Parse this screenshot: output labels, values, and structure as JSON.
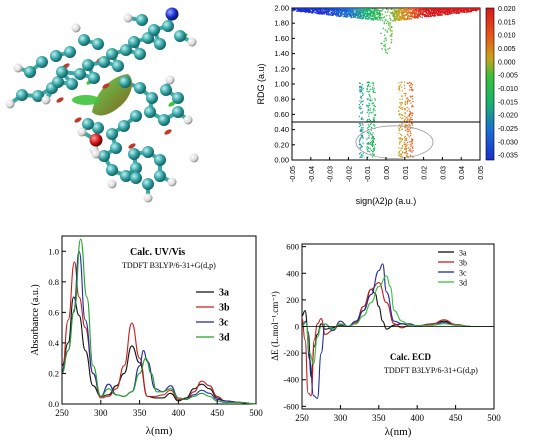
{
  "figure": {
    "molecule_panel": {
      "description_note": ""
    }
  },
  "chart_data": [
    {
      "id": "rdg",
      "type": "scatter",
      "xlabel": "sign(λ2)ρ (a.u.)",
      "ylabel": "RDG (a.u)",
      "xlim": [
        -0.05,
        0.05
      ],
      "ylim": [
        0.0,
        2.0
      ],
      "xticks": [
        "-0.05",
        "-0.04",
        "-0.03",
        "-0.02",
        "-0.01",
        "0.00",
        "0.01",
        "0.02",
        "0.03",
        "0.04",
        "0.05"
      ],
      "yticks": [
        "0.00",
        "0.20",
        "0.40",
        "0.60",
        "0.80",
        "1.00",
        "1.20",
        "1.40",
        "1.60",
        "1.80",
        "2.00"
      ],
      "threshold_line_y": 0.5,
      "colorbar": {
        "ticks": [
          "0.020",
          "0.015",
          "0.010",
          "0.005",
          "0.000",
          "-0.005",
          "-0.010",
          "-0.015",
          "-0.020",
          "-0.025",
          "-0.030",
          "-0.035"
        ],
        "colors": [
          "#d7191c",
          "#e8551a",
          "#f28b1e",
          "#b5b51a",
          "#3bbf3b",
          "#1d9a7a",
          "#1a3fd0"
        ]
      },
      "highlight_region": {
        "x_range": [
          -0.016,
          0.025
        ],
        "y_range": [
          0.02,
          0.45
        ]
      },
      "grid": false
    },
    {
      "id": "uv",
      "type": "line",
      "title": "Calc. UV/Vis",
      "subtitle": "TDDFT B3LYP/6-31+G(d,p)",
      "xlabel": "λ(nm)",
      "ylabel": "Absorbance (a.u.)",
      "xlim": [
        250,
        500
      ],
      "ylim": [
        0.0,
        1.1
      ],
      "xticks": [
        "250",
        "300",
        "350",
        "400",
        "450",
        "500"
      ],
      "yticks": [
        "0.0",
        "0.2",
        "0.4",
        "0.6",
        "0.8",
        "1.0"
      ],
      "legend_position": "right",
      "series": [
        {
          "name": "3a",
          "color": "#111111",
          "x": [
            250,
            258,
            265,
            272,
            280,
            290,
            300,
            310,
            320,
            330,
            340,
            350,
            360,
            370,
            380,
            390,
            400,
            410,
            420,
            430,
            440,
            450,
            460,
            480,
            500
          ],
          "y": [
            0.25,
            0.4,
            0.7,
            0.58,
            0.35,
            0.12,
            0.05,
            0.06,
            0.12,
            0.2,
            0.38,
            0.27,
            0.05,
            0.04,
            0.04,
            0.07,
            0.02,
            0.04,
            0.1,
            0.13,
            0.1,
            0.04,
            0.02,
            0.01,
            0.0
          ]
        },
        {
          "name": "3b",
          "color": "#c81e1e",
          "x": [
            250,
            258,
            266,
            272,
            280,
            290,
            300,
            310,
            320,
            330,
            340,
            350,
            360,
            370,
            380,
            390,
            400,
            410,
            420,
            430,
            440,
            450,
            460,
            480,
            500
          ],
          "y": [
            0.2,
            0.55,
            0.93,
            0.7,
            0.5,
            0.2,
            0.04,
            0.05,
            0.1,
            0.25,
            0.53,
            0.3,
            0.05,
            0.05,
            0.06,
            0.09,
            0.03,
            0.03,
            0.08,
            0.15,
            0.12,
            0.05,
            0.02,
            0.01,
            0.0
          ]
        },
        {
          "name": "3c",
          "color": "#1f2a9e",
          "x": [
            250,
            258,
            265,
            272,
            280,
            290,
            300,
            310,
            320,
            330,
            340,
            350,
            355,
            360,
            370,
            380,
            390,
            400,
            410,
            420,
            430,
            440,
            450,
            460,
            480,
            500
          ],
          "y": [
            0.22,
            0.35,
            0.6,
            1.0,
            0.55,
            0.2,
            0.05,
            0.13,
            0.06,
            0.05,
            0.08,
            0.25,
            0.35,
            0.28,
            0.1,
            0.08,
            0.12,
            0.04,
            0.03,
            0.06,
            0.09,
            0.07,
            0.03,
            0.02,
            0.01,
            0.0
          ]
        },
        {
          "name": "3d",
          "color": "#22a12a",
          "x": [
            250,
            258,
            266,
            274,
            282,
            290,
            300,
            310,
            320,
            330,
            340,
            350,
            358,
            365,
            372,
            380,
            390,
            400,
            410,
            420,
            430,
            440,
            450,
            460,
            480,
            500
          ],
          "y": [
            0.2,
            0.35,
            0.62,
            1.08,
            0.7,
            0.25,
            0.05,
            0.1,
            0.06,
            0.05,
            0.08,
            0.2,
            0.3,
            0.2,
            0.08,
            0.08,
            0.1,
            0.04,
            0.03,
            0.05,
            0.07,
            0.05,
            0.02,
            0.01,
            0.01,
            0.0
          ]
        }
      ]
    },
    {
      "id": "ecd",
      "type": "line",
      "title": "Calc. ECD",
      "subtitle": "TDDFT B3LYP/6-31+G(d,p)",
      "xlabel": "λ(nm)",
      "ylabel": "ΔE (L.mol⁻¹.cm⁻¹)",
      "xlim": [
        250,
        500
      ],
      "ylim": [
        -620,
        620
      ],
      "xticks": [
        "250",
        "300",
        "350",
        "400",
        "450",
        "500"
      ],
      "yticks": [
        "-600",
        "-400",
        "-200",
        "0",
        "200",
        "400",
        "600"
      ],
      "legend_position": "top-right",
      "series": [
        {
          "name": "3a",
          "color": "#111111",
          "x": [
            250,
            254,
            258,
            262,
            266,
            270,
            275,
            280,
            290,
            300,
            310,
            320,
            330,
            340,
            345,
            350,
            355,
            360,
            370,
            380,
            390,
            400,
            420,
            435,
            450,
            470,
            500
          ],
          "y": [
            80,
            120,
            -40,
            -380,
            -150,
            -60,
            20,
            -20,
            -10,
            10,
            0,
            20,
            120,
            280,
            250,
            150,
            40,
            -20,
            10,
            20,
            10,
            5,
            20,
            40,
            15,
            0,
            0
          ]
        },
        {
          "name": "3b",
          "color": "#c81e1e",
          "x": [
            250,
            254,
            258,
            262,
            266,
            270,
            275,
            280,
            290,
            300,
            310,
            320,
            330,
            340,
            350,
            360,
            370,
            380,
            390,
            400,
            420,
            435,
            450,
            470,
            500
          ],
          "y": [
            60,
            -100,
            -500,
            -520,
            -100,
            20,
            60,
            -60,
            -30,
            20,
            0,
            30,
            150,
            280,
            330,
            180,
            20,
            -10,
            10,
            5,
            20,
            50,
            15,
            0,
            0
          ]
        },
        {
          "name": "3c",
          "color": "#1f2a9e",
          "x": [
            250,
            255,
            260,
            265,
            270,
            275,
            280,
            290,
            300,
            310,
            320,
            330,
            340,
            350,
            355,
            360,
            370,
            380,
            390,
            400,
            420,
            435,
            450,
            470,
            500
          ],
          "y": [
            0,
            40,
            -250,
            -520,
            -540,
            -200,
            20,
            -30,
            40,
            0,
            40,
            120,
            240,
            420,
            470,
            260,
            40,
            20,
            20,
            5,
            10,
            30,
            10,
            0,
            0
          ]
        },
        {
          "name": "3d",
          "color": "#3fbf3f",
          "x": [
            250,
            255,
            260,
            265,
            270,
            275,
            280,
            290,
            300,
            310,
            320,
            330,
            340,
            350,
            360,
            365,
            370,
            380,
            390,
            400,
            420,
            435,
            450,
            470,
            500
          ],
          "y": [
            0,
            30,
            -200,
            -280,
            -80,
            0,
            20,
            -20,
            20,
            0,
            20,
            80,
            180,
            300,
            380,
            300,
            120,
            40,
            10,
            5,
            10,
            20,
            10,
            0,
            0
          ]
        }
      ]
    }
  ]
}
